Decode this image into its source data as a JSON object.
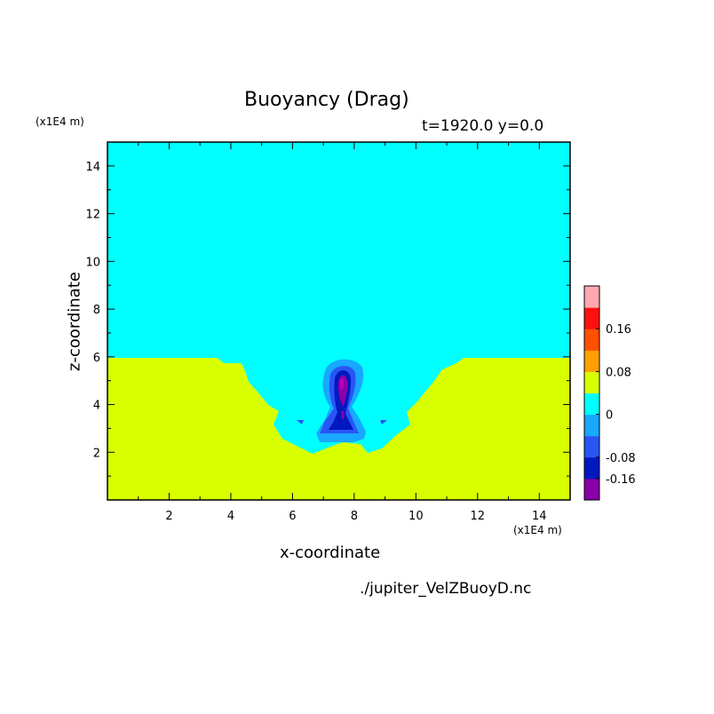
{
  "chart_data": {
    "type": "contourf",
    "title": "Buoyancy (Drag)",
    "subtitle": "t=1920.0 y=0.0",
    "xlabel": "x-coordinate",
    "ylabel": "z-coordinate",
    "x_unit": "(x1E4 m)",
    "y_unit": "(x1E4 m)",
    "xlim": [
      0,
      15
    ],
    "ylim": [
      0,
      15
    ],
    "x_ticks": [
      "2",
      "4",
      "6",
      "8",
      "10",
      "12",
      "14"
    ],
    "y_ticks": [
      "2",
      "4",
      "6",
      "8",
      "10",
      "12",
      "14"
    ],
    "colorbar": {
      "levels": [
        {
          "color": "#8a00a8"
        },
        {
          "color": "#0018c0"
        },
        {
          "color": "#2a55f5"
        },
        {
          "color": "#18a8ff"
        },
        {
          "color": "#00ffff"
        },
        {
          "color": "#d8ff00"
        },
        {
          "color": "#ffa000"
        },
        {
          "color": "#ff5000"
        },
        {
          "color": "#ff1010"
        },
        {
          "color": "#ffa8b0"
        }
      ],
      "tick_labels": [
        "0.16",
        "0.08",
        "0",
        "-0.08",
        "-0.16"
      ]
    },
    "regions": [
      {
        "level": "0 to 0.04",
        "color": "#d8ff00",
        "description_level": "lower layer"
      },
      {
        "level": "-0.04 to 0",
        "color": "#00ffff"
      },
      {
        "level": "-0.08 to -0.04",
        "color": "#18a8ff"
      },
      {
        "level": "-0.12 to -0.08",
        "color": "#2a55f5"
      },
      {
        "level": "-0.16 to -0.12",
        "color": "#0018c0"
      },
      {
        "level": "< -0.16",
        "color": "#8a00a8"
      }
    ],
    "source_file": "./jupiter_VelZBuoyD.nc"
  }
}
